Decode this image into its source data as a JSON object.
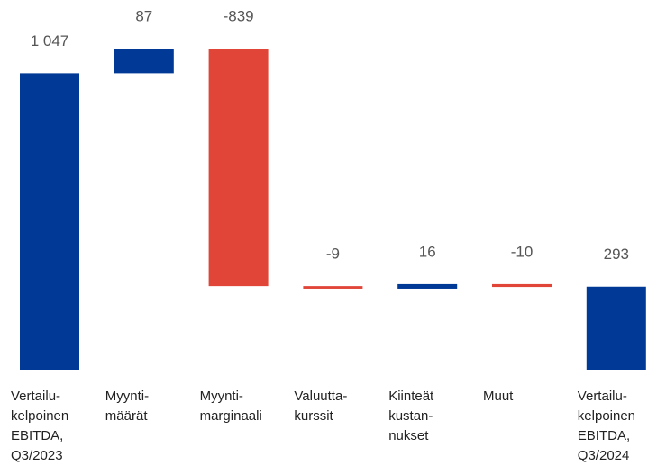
{
  "chart_data": {
    "type": "waterfall",
    "categories": [
      "Vertailu-\nkelpoinen\nEBITDA,\nQ3/2023",
      "Myynti-\nmäärät",
      "Myynti-\nmarginaali",
      "Valuutta-\nkurssit",
      "Kiinteät\nkustan-\nnukset",
      "Muut",
      "Vertailu-\nkelpoinen\nEBITDA,\nQ3/2024"
    ],
    "values": [
      1047,
      87,
      -839,
      -9,
      16,
      -10,
      293
    ],
    "value_labels": [
      "1 047",
      "87",
      "-839",
      "-9",
      "16",
      "-10",
      "293"
    ],
    "measure": [
      "absolute",
      "relative",
      "relative",
      "relative",
      "relative",
      "relative",
      "absolute"
    ],
    "colors": [
      "#003a96",
      "#003a96",
      "#e04538",
      "#e04538",
      "#003a96",
      "#e04538",
      "#003a96"
    ]
  }
}
